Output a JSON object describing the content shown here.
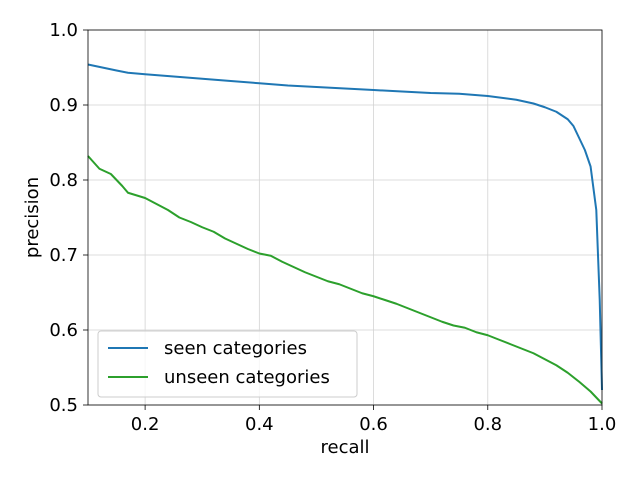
{
  "chart_data": {
    "type": "line",
    "title": "",
    "xlabel": "recall",
    "ylabel": "precision",
    "xlim": [
      0.1,
      1.0
    ],
    "ylim": [
      0.5,
      1.0
    ],
    "xticks": [
      0.2,
      0.4,
      0.6,
      0.8,
      1.0
    ],
    "xtick_labels": [
      "0.2",
      "0.4",
      "0.6",
      "0.8",
      "1.0"
    ],
    "yticks": [
      0.5,
      0.6,
      0.7,
      0.8,
      0.9,
      1.0
    ],
    "ytick_labels": [
      "0.5",
      "0.6",
      "0.7",
      "0.8",
      "0.9",
      "1.0"
    ],
    "grid": true,
    "legend": "lower-left",
    "series": [
      {
        "name": "seen categories",
        "color": "#1f77b4",
        "x": [
          0.1,
          0.15,
          0.17,
          0.2,
          0.25,
          0.3,
          0.35,
          0.4,
          0.45,
          0.5,
          0.55,
          0.6,
          0.65,
          0.7,
          0.75,
          0.8,
          0.85,
          0.88,
          0.9,
          0.92,
          0.94,
          0.95,
          0.96,
          0.97,
          0.98,
          0.99,
          0.993,
          0.996,
          0.998,
          1.0
        ],
        "y": [
          0.954,
          0.946,
          0.943,
          0.941,
          0.938,
          0.935,
          0.932,
          0.929,
          0.926,
          0.924,
          0.922,
          0.92,
          0.918,
          0.916,
          0.915,
          0.912,
          0.907,
          0.902,
          0.897,
          0.891,
          0.881,
          0.872,
          0.856,
          0.84,
          0.818,
          0.76,
          0.7,
          0.64,
          0.58,
          0.52
        ]
      },
      {
        "name": "unseen categories",
        "color": "#2ca02c",
        "x": [
          0.1,
          0.12,
          0.14,
          0.16,
          0.17,
          0.2,
          0.22,
          0.24,
          0.26,
          0.28,
          0.3,
          0.32,
          0.34,
          0.36,
          0.38,
          0.4,
          0.42,
          0.44,
          0.46,
          0.48,
          0.5,
          0.52,
          0.54,
          0.56,
          0.58,
          0.6,
          0.62,
          0.64,
          0.66,
          0.68,
          0.7,
          0.72,
          0.74,
          0.76,
          0.78,
          0.8,
          0.82,
          0.84,
          0.86,
          0.88,
          0.9,
          0.92,
          0.94,
          0.96,
          0.98,
          1.0
        ],
        "y": [
          0.832,
          0.815,
          0.808,
          0.792,
          0.783,
          0.776,
          0.768,
          0.76,
          0.75,
          0.744,
          0.737,
          0.731,
          0.722,
          0.715,
          0.708,
          0.702,
          0.699,
          0.691,
          0.684,
          0.677,
          0.671,
          0.665,
          0.661,
          0.655,
          0.649,
          0.645,
          0.64,
          0.635,
          0.629,
          0.623,
          0.617,
          0.611,
          0.606,
          0.603,
          0.597,
          0.593,
          0.587,
          0.581,
          0.575,
          0.569,
          0.561,
          0.553,
          0.543,
          0.531,
          0.518,
          0.502
        ]
      }
    ]
  }
}
